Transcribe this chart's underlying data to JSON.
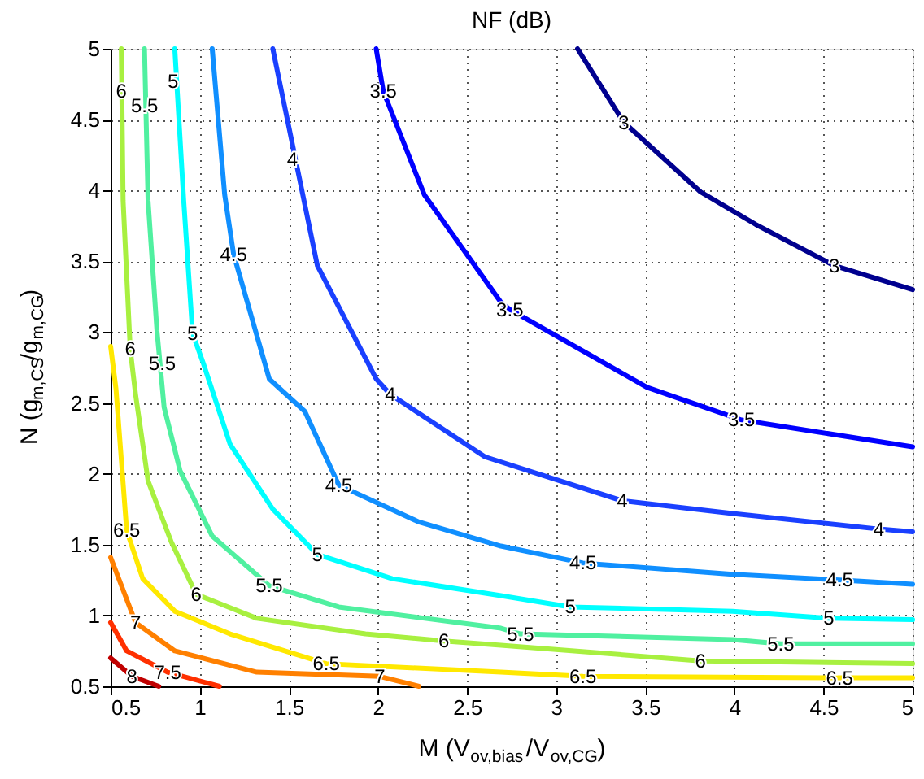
{
  "chart_data": {
    "type": "line",
    "title": "NF (dB)",
    "xlabel": "M (V$_{ov,bias}$/V$_{ov,CG}$)",
    "ylabel": "N (g$_{m,CS}$/g$_{m,CG}$)",
    "xlim": [
      0.5,
      5
    ],
    "ylim": [
      0.5,
      5
    ],
    "xticks": [
      0.5,
      1,
      1.5,
      2,
      2.5,
      3,
      3.5,
      4,
      4.5,
      5
    ],
    "yticks": [
      0.5,
      1,
      1.5,
      2,
      2.5,
      3,
      3.5,
      4,
      4.5,
      5
    ],
    "grid": true,
    "series": [
      {
        "color": "#00008f",
        "x": [
          3.12,
          3.38,
          3.81,
          4.12,
          4.56,
          5
        ],
        "values": [
          5,
          4.48,
          3.99,
          3.76,
          3.47,
          3.3
        ]
      },
      {
        "color": "#0000ff",
        "x": [
          1.99,
          2.03,
          2.26,
          2.69,
          2.74,
          3.51,
          4.04,
          5
        ],
        "values": [
          5,
          4.7,
          3.97,
          3.21,
          3.16,
          2.61,
          2.38,
          2.19
        ]
      },
      {
        "color": "#1a40ff",
        "x": [
          1.41,
          1.66,
          1.99,
          2.07,
          2.6,
          3.37,
          3.99,
          4.81,
          5
        ],
        "values": [
          5,
          3.47,
          2.67,
          2.56,
          2.12,
          1.81,
          1.72,
          1.61,
          1.59
        ]
      },
      {
        "color": "#108fff",
        "x": [
          1.07,
          1.14,
          1.19,
          1.39,
          1.59,
          1.78,
          2.23,
          2.69,
          3.15,
          3.99,
          4.59,
          5
        ],
        "values": [
          5,
          3.97,
          3.55,
          2.67,
          2.44,
          1.92,
          1.66,
          1.49,
          1.37,
          1.29,
          1.25,
          1.22
        ]
      },
      {
        "color": "#00ffff",
        "x": [
          0.86,
          0.91,
          0.96,
          1.02,
          1.17,
          1.41,
          1.66,
          2.08,
          2.69,
          3.08,
          3.99,
          4.53,
          5
        ],
        "values": [
          5,
          3.93,
          2.99,
          2.78,
          2.21,
          1.75,
          1.43,
          1.26,
          1.14,
          1.06,
          1.03,
          0.98,
          0.97
        ]
      },
      {
        "color": "#50f0a0",
        "x": [
          0.69,
          0.71,
          0.76,
          0.8,
          0.89,
          1.07,
          1.39,
          1.78,
          2.69,
          2.8,
          3.99,
          4.26,
          5
        ],
        "values": [
          5,
          3.93,
          3.01,
          2.47,
          2.02,
          1.56,
          1.21,
          1.06,
          0.91,
          0.87,
          0.83,
          0.8,
          0.8
        ]
      },
      {
        "color": "#a8f040",
        "x": [
          0.56,
          0.57,
          0.61,
          0.64,
          0.71,
          0.84,
          0.98,
          1.32,
          1.93,
          2.37,
          2.69,
          3.81,
          5
        ],
        "values": [
          5,
          3.93,
          2.88,
          2.56,
          1.95,
          1.52,
          1.15,
          0.98,
          0.87,
          0.82,
          0.79,
          0.68,
          0.66
        ]
      },
      {
        "color": "#ffe800",
        "x": [
          0.5,
          0.53,
          0.59,
          0.68,
          0.86,
          1.17,
          1.71,
          2.69,
          3.15,
          4.59,
          5
        ],
        "values": [
          2.9,
          2.6,
          1.6,
          1.26,
          1.03,
          0.87,
          0.66,
          0.6,
          0.57,
          0.56,
          0.56
        ]
      },
      {
        "color": "#ff8000",
        "x": [
          0.5,
          0.64,
          0.86,
          1.32,
          2.01,
          2.23
        ],
        "values": [
          1.41,
          0.95,
          0.75,
          0.6,
          0.57,
          0.5
        ]
      },
      {
        "color": "#ff3000",
        "x": [
          0.5,
          0.59,
          0.82,
          1.11
        ],
        "values": [
          0.95,
          0.75,
          0.6,
          0.5
        ]
      },
      {
        "color": "#c00000",
        "x": [
          0.5,
          0.62,
          0.77
        ],
        "values": [
          0.7,
          0.57,
          0.5
        ]
      }
    ],
    "annotations": [
      {
        "text": "3",
        "x": 3.38,
        "y": 4.48
      },
      {
        "text": "3",
        "x": 4.56,
        "y": 3.47
      },
      {
        "text": "3.5",
        "x": 2.03,
        "y": 4.7
      },
      {
        "text": "3.5",
        "x": 2.74,
        "y": 3.16
      },
      {
        "text": "3.5",
        "x": 4.04,
        "y": 2.38
      },
      {
        "text": "4",
        "x": 1.52,
        "y": 4.22
      },
      {
        "text": "4",
        "x": 2.07,
        "y": 2.56
      },
      {
        "text": "4",
        "x": 3.37,
        "y": 1.81
      },
      {
        "text": "4",
        "x": 4.81,
        "y": 1.61
      },
      {
        "text": "4.5",
        "x": 1.19,
        "y": 3.55
      },
      {
        "text": "4.5",
        "x": 1.78,
        "y": 1.92
      },
      {
        "text": "4.5",
        "x": 3.15,
        "y": 1.37
      },
      {
        "text": "4.5",
        "x": 4.59,
        "y": 1.25
      },
      {
        "text": "5",
        "x": 0.85,
        "y": 4.77
      },
      {
        "text": "5",
        "x": 0.96,
        "y": 2.99
      },
      {
        "text": "5",
        "x": 1.66,
        "y": 1.43
      },
      {
        "text": "5",
        "x": 3.08,
        "y": 1.06
      },
      {
        "text": "5",
        "x": 4.53,
        "y": 0.98
      },
      {
        "text": "5.5",
        "x": 0.69,
        "y": 4.6
      },
      {
        "text": "5.5",
        "x": 0.79,
        "y": 2.78
      },
      {
        "text": "5.5",
        "x": 1.39,
        "y": 1.21
      },
      {
        "text": "5.5",
        "x": 2.8,
        "y": 0.87
      },
      {
        "text": "5.5",
        "x": 4.26,
        "y": 0.8
      },
      {
        "text": "6",
        "x": 0.56,
        "y": 4.7
      },
      {
        "text": "6",
        "x": 0.61,
        "y": 2.88
      },
      {
        "text": "6",
        "x": 0.98,
        "y": 1.15
      },
      {
        "text": "6",
        "x": 2.37,
        "y": 0.82
      },
      {
        "text": "6",
        "x": 3.81,
        "y": 0.68
      },
      {
        "text": "6.5",
        "x": 0.59,
        "y": 1.6
      },
      {
        "text": "6.5",
        "x": 1.71,
        "y": 0.66
      },
      {
        "text": "6.5",
        "x": 3.15,
        "y": 0.57
      },
      {
        "text": "6.5",
        "x": 4.59,
        "y": 0.56
      },
      {
        "text": "7",
        "x": 0.64,
        "y": 0.95
      },
      {
        "text": "7",
        "x": 2.01,
        "y": 0.57
      },
      {
        "text": "7.5",
        "x": 0.82,
        "y": 0.6
      },
      {
        "text": "8",
        "x": 0.62,
        "y": 0.57
      }
    ]
  }
}
